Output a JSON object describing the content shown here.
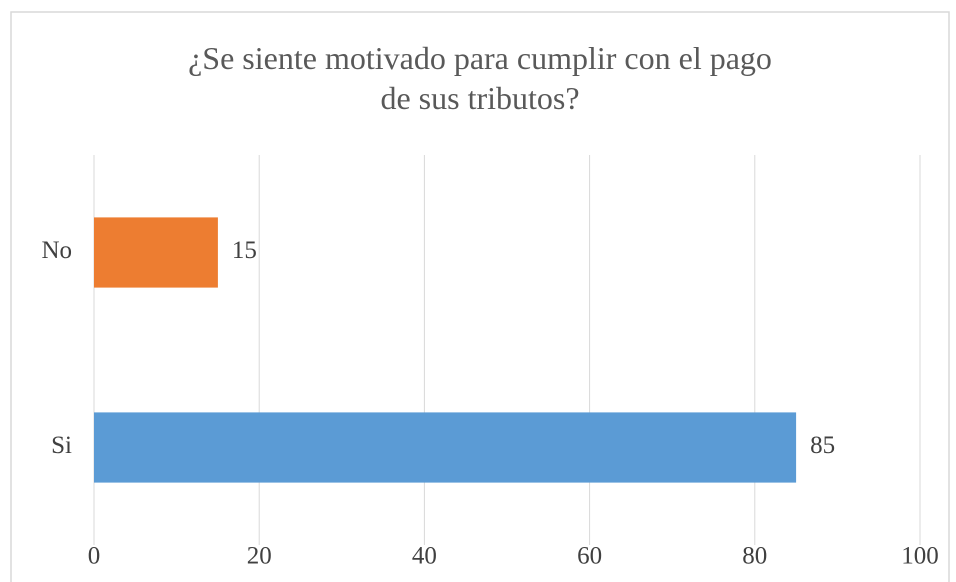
{
  "chart_data": {
    "type": "bar",
    "orientation": "horizontal",
    "title": "¿Se siente motivado para cumplir con el pago de sus tributos?",
    "categories": [
      "No",
      "Si"
    ],
    "values": [
      15,
      85
    ],
    "colors": [
      "#ed7d31",
      "#5b9bd5"
    ],
    "xlim": [
      0,
      100
    ],
    "xticks": [
      0,
      20,
      40,
      60,
      80,
      100
    ],
    "grid": true
  }
}
